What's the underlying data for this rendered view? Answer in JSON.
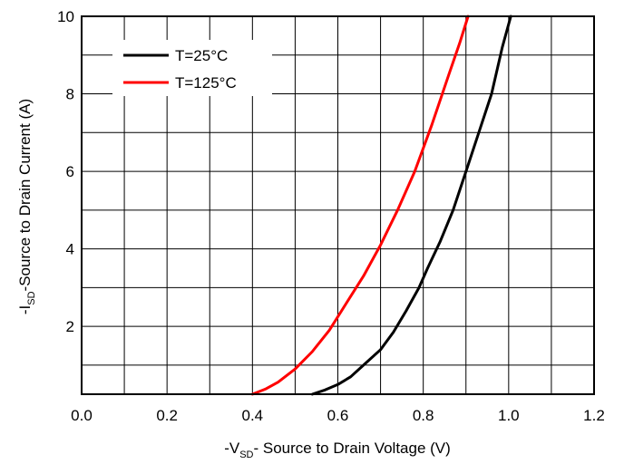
{
  "chart_data": {
    "type": "line",
    "xlabel": {
      "prefix": "-V",
      "sub": "SD",
      "rest": "- Source to Drain Voltage (V)"
    },
    "ylabel": {
      "prefix": "-I",
      "sub": "SD",
      "rest": "-Source to Drain Current (A)"
    },
    "xlim": [
      0.0,
      1.2
    ],
    "ylim": [
      0.25,
      10
    ],
    "x_ticks": [
      "0.0",
      "0.2",
      "0.4",
      "0.6",
      "0.8",
      "1.0",
      "1.2"
    ],
    "y_ticks": [
      "2",
      "4",
      "6",
      "8",
      "10"
    ],
    "grid": true,
    "legend_position": "top-left",
    "series": [
      {
        "name": "T=25°C",
        "color": "#000000",
        "x": [
          0.54,
          0.57,
          0.6,
          0.63,
          0.66,
          0.7,
          0.73,
          0.76,
          0.79,
          0.81,
          0.84,
          0.87,
          0.9,
          0.93,
          0.96,
          0.985,
          1.005
        ],
        "y": [
          0.25,
          0.36,
          0.5,
          0.7,
          1.0,
          1.4,
          1.85,
          2.4,
          3.0,
          3.5,
          4.2,
          5.0,
          6.0,
          7.0,
          8.0,
          9.2,
          10.0
        ]
      },
      {
        "name": "T=125°C",
        "color": "#ff0000",
        "x": [
          0.4,
          0.43,
          0.46,
          0.5,
          0.54,
          0.58,
          0.62,
          0.66,
          0.7,
          0.74,
          0.78,
          0.82,
          0.86,
          0.885,
          0.905
        ],
        "y": [
          0.25,
          0.38,
          0.56,
          0.9,
          1.35,
          1.9,
          2.6,
          3.3,
          4.1,
          5.0,
          6.0,
          7.2,
          8.5,
          9.3,
          10.0
        ]
      }
    ]
  }
}
